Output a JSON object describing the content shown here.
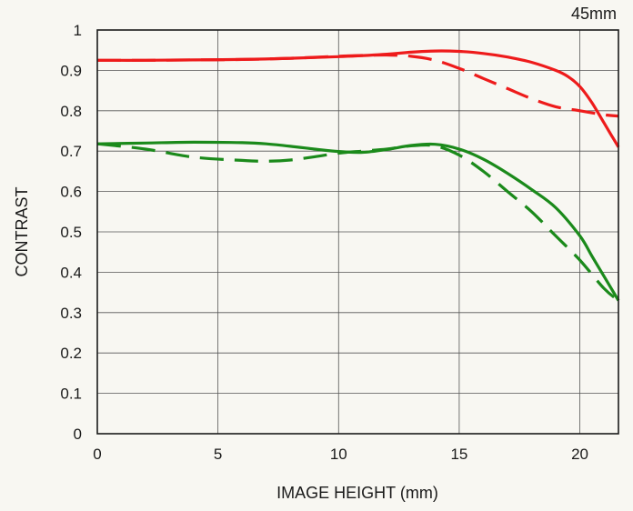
{
  "chart_data": {
    "type": "line",
    "title": "45mm",
    "xlabel": "IMAGE HEIGHT (mm)",
    "ylabel": "CONTRAST",
    "xlim": [
      0,
      21.6
    ],
    "ylim": [
      0,
      1
    ],
    "xticks": [
      0,
      5,
      10,
      15,
      20
    ],
    "yticks": [
      0,
      0.1,
      0.2,
      0.3,
      0.4,
      0.5,
      0.6,
      0.7,
      0.8,
      0.9,
      1
    ],
    "grid": true,
    "legend": "none",
    "series": [
      {
        "color": "#ee1b1b",
        "dash": "solid",
        "x": [
          0,
          2,
          4,
          6,
          8,
          10,
          12,
          13,
          14,
          15,
          16,
          17,
          18,
          19,
          19.5,
          20,
          20.5,
          21,
          21.3,
          21.6
        ],
        "y": [
          0.925,
          0.925,
          0.926,
          0.927,
          0.93,
          0.934,
          0.94,
          0.945,
          0.948,
          0.947,
          0.942,
          0.933,
          0.92,
          0.9,
          0.885,
          0.86,
          0.82,
          0.77,
          0.74,
          0.71
        ]
      },
      {
        "color": "#ee1b1b",
        "dash": "dashed",
        "x": [
          0,
          2,
          4,
          6,
          8,
          10,
          11,
          12,
          13,
          14,
          15,
          16,
          17,
          18,
          19,
          20,
          21,
          21.6
        ],
        "y": [
          0.925,
          0.925,
          0.926,
          0.927,
          0.93,
          0.935,
          0.937,
          0.938,
          0.935,
          0.925,
          0.905,
          0.88,
          0.855,
          0.83,
          0.81,
          0.8,
          0.79,
          0.787
        ]
      },
      {
        "color": "#1b8a1b",
        "dash": "solid",
        "x": [
          0,
          2,
          4,
          6,
          7,
          8,
          9,
          10,
          11,
          12,
          13,
          14,
          15,
          16,
          17,
          18,
          19,
          20,
          20.5,
          21,
          21.6
        ],
        "y": [
          0.718,
          0.72,
          0.722,
          0.721,
          0.718,
          0.712,
          0.705,
          0.699,
          0.697,
          0.704,
          0.714,
          0.717,
          0.705,
          0.68,
          0.645,
          0.605,
          0.56,
          0.49,
          0.44,
          0.39,
          0.33
        ]
      },
      {
        "color": "#1b8a1b",
        "dash": "dashed",
        "x": [
          0,
          2,
          4,
          6,
          7,
          8,
          9,
          10,
          11,
          12,
          13,
          14,
          15,
          16,
          17,
          18,
          19,
          20,
          21,
          21.6
        ],
        "y": [
          0.718,
          0.705,
          0.685,
          0.677,
          0.675,
          0.678,
          0.686,
          0.695,
          0.7,
          0.705,
          0.713,
          0.713,
          0.69,
          0.65,
          0.6,
          0.55,
          0.49,
          0.43,
          0.36,
          0.33
        ]
      }
    ]
  }
}
